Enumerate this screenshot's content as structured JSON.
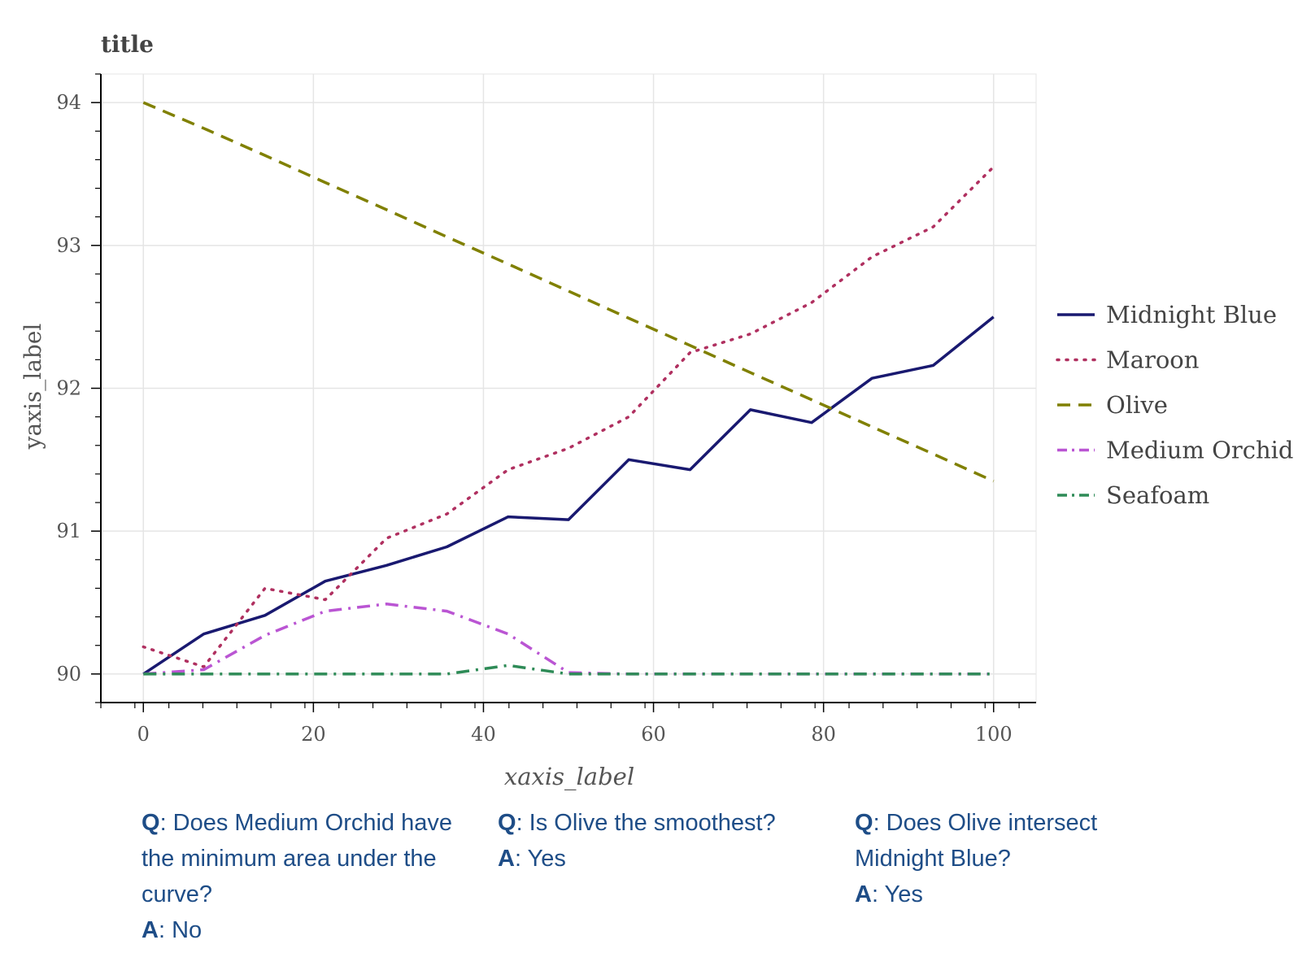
{
  "chart_data": {
    "type": "line",
    "title": "title",
    "xlabel": "xaxis_label",
    "ylabel": "yaxis_label",
    "xlim": [
      -5,
      105
    ],
    "ylim": [
      89.8,
      94.2
    ],
    "xticks": [
      "0",
      "20",
      "40",
      "60",
      "80",
      "100"
    ],
    "yticks": [
      "90",
      "91",
      "92",
      "93",
      "94"
    ],
    "legend_position": "right",
    "grid": true,
    "x": [
      0,
      7.1,
      14.3,
      21.4,
      28.6,
      35.7,
      42.9,
      50,
      57.1,
      64.3,
      71.4,
      78.6,
      85.7,
      92.9,
      100
    ],
    "series": [
      {
        "name": "Midnight Blue",
        "color": "#191970",
        "style": "solid",
        "values": [
          90.0,
          90.28,
          90.41,
          90.65,
          90.76,
          90.89,
          91.1,
          91.08,
          91.5,
          91.43,
          91.85,
          91.76,
          92.07,
          92.16,
          92.5
        ]
      },
      {
        "name": "Maroon",
        "color": "#b03060",
        "style": "dotted",
        "values": [
          90.19,
          90.05,
          90.6,
          90.52,
          90.95,
          91.12,
          91.43,
          91.58,
          91.8,
          92.25,
          92.38,
          92.6,
          92.92,
          93.13,
          93.55
        ]
      },
      {
        "name": "Olive",
        "color": "#808000",
        "style": "dashed",
        "values": [
          94.0,
          93.82,
          93.63,
          93.44,
          93.25,
          93.06,
          92.87,
          92.68,
          92.49,
          92.3,
          92.11,
          91.92,
          91.73,
          91.54,
          91.35
        ]
      },
      {
        "name": "Medium Orchid",
        "color": "#ba55d3",
        "style": "dashdot",
        "values": [
          90.0,
          90.03,
          90.27,
          90.44,
          90.49,
          90.44,
          90.28,
          90.01,
          90.0,
          90.0,
          90.0,
          90.0,
          90.0,
          90.0,
          90.0
        ]
      },
      {
        "name": "Seafoam",
        "color": "#2e8b57",
        "style": "dashdot",
        "values": [
          90.0,
          90.0,
          90.0,
          90.0,
          90.0,
          90.0,
          90.06,
          90.0,
          90.0,
          90.0,
          90.0,
          90.0,
          90.0,
          90.0,
          90.0
        ]
      }
    ]
  },
  "qa": [
    {
      "q_prefix": "Q",
      "question": ": Does Medium Orchid have the minimum area under the curve?",
      "a_prefix": "A",
      "answer": ": No"
    },
    {
      "q_prefix": "Q",
      "question": ": Is Olive the smoothest?",
      "a_prefix": "A",
      "answer": ": Yes"
    },
    {
      "q_prefix": "Q",
      "question": ": Does Olive intersect Midnight Blue?",
      "a_prefix": "A",
      "answer": ": Yes"
    }
  ]
}
